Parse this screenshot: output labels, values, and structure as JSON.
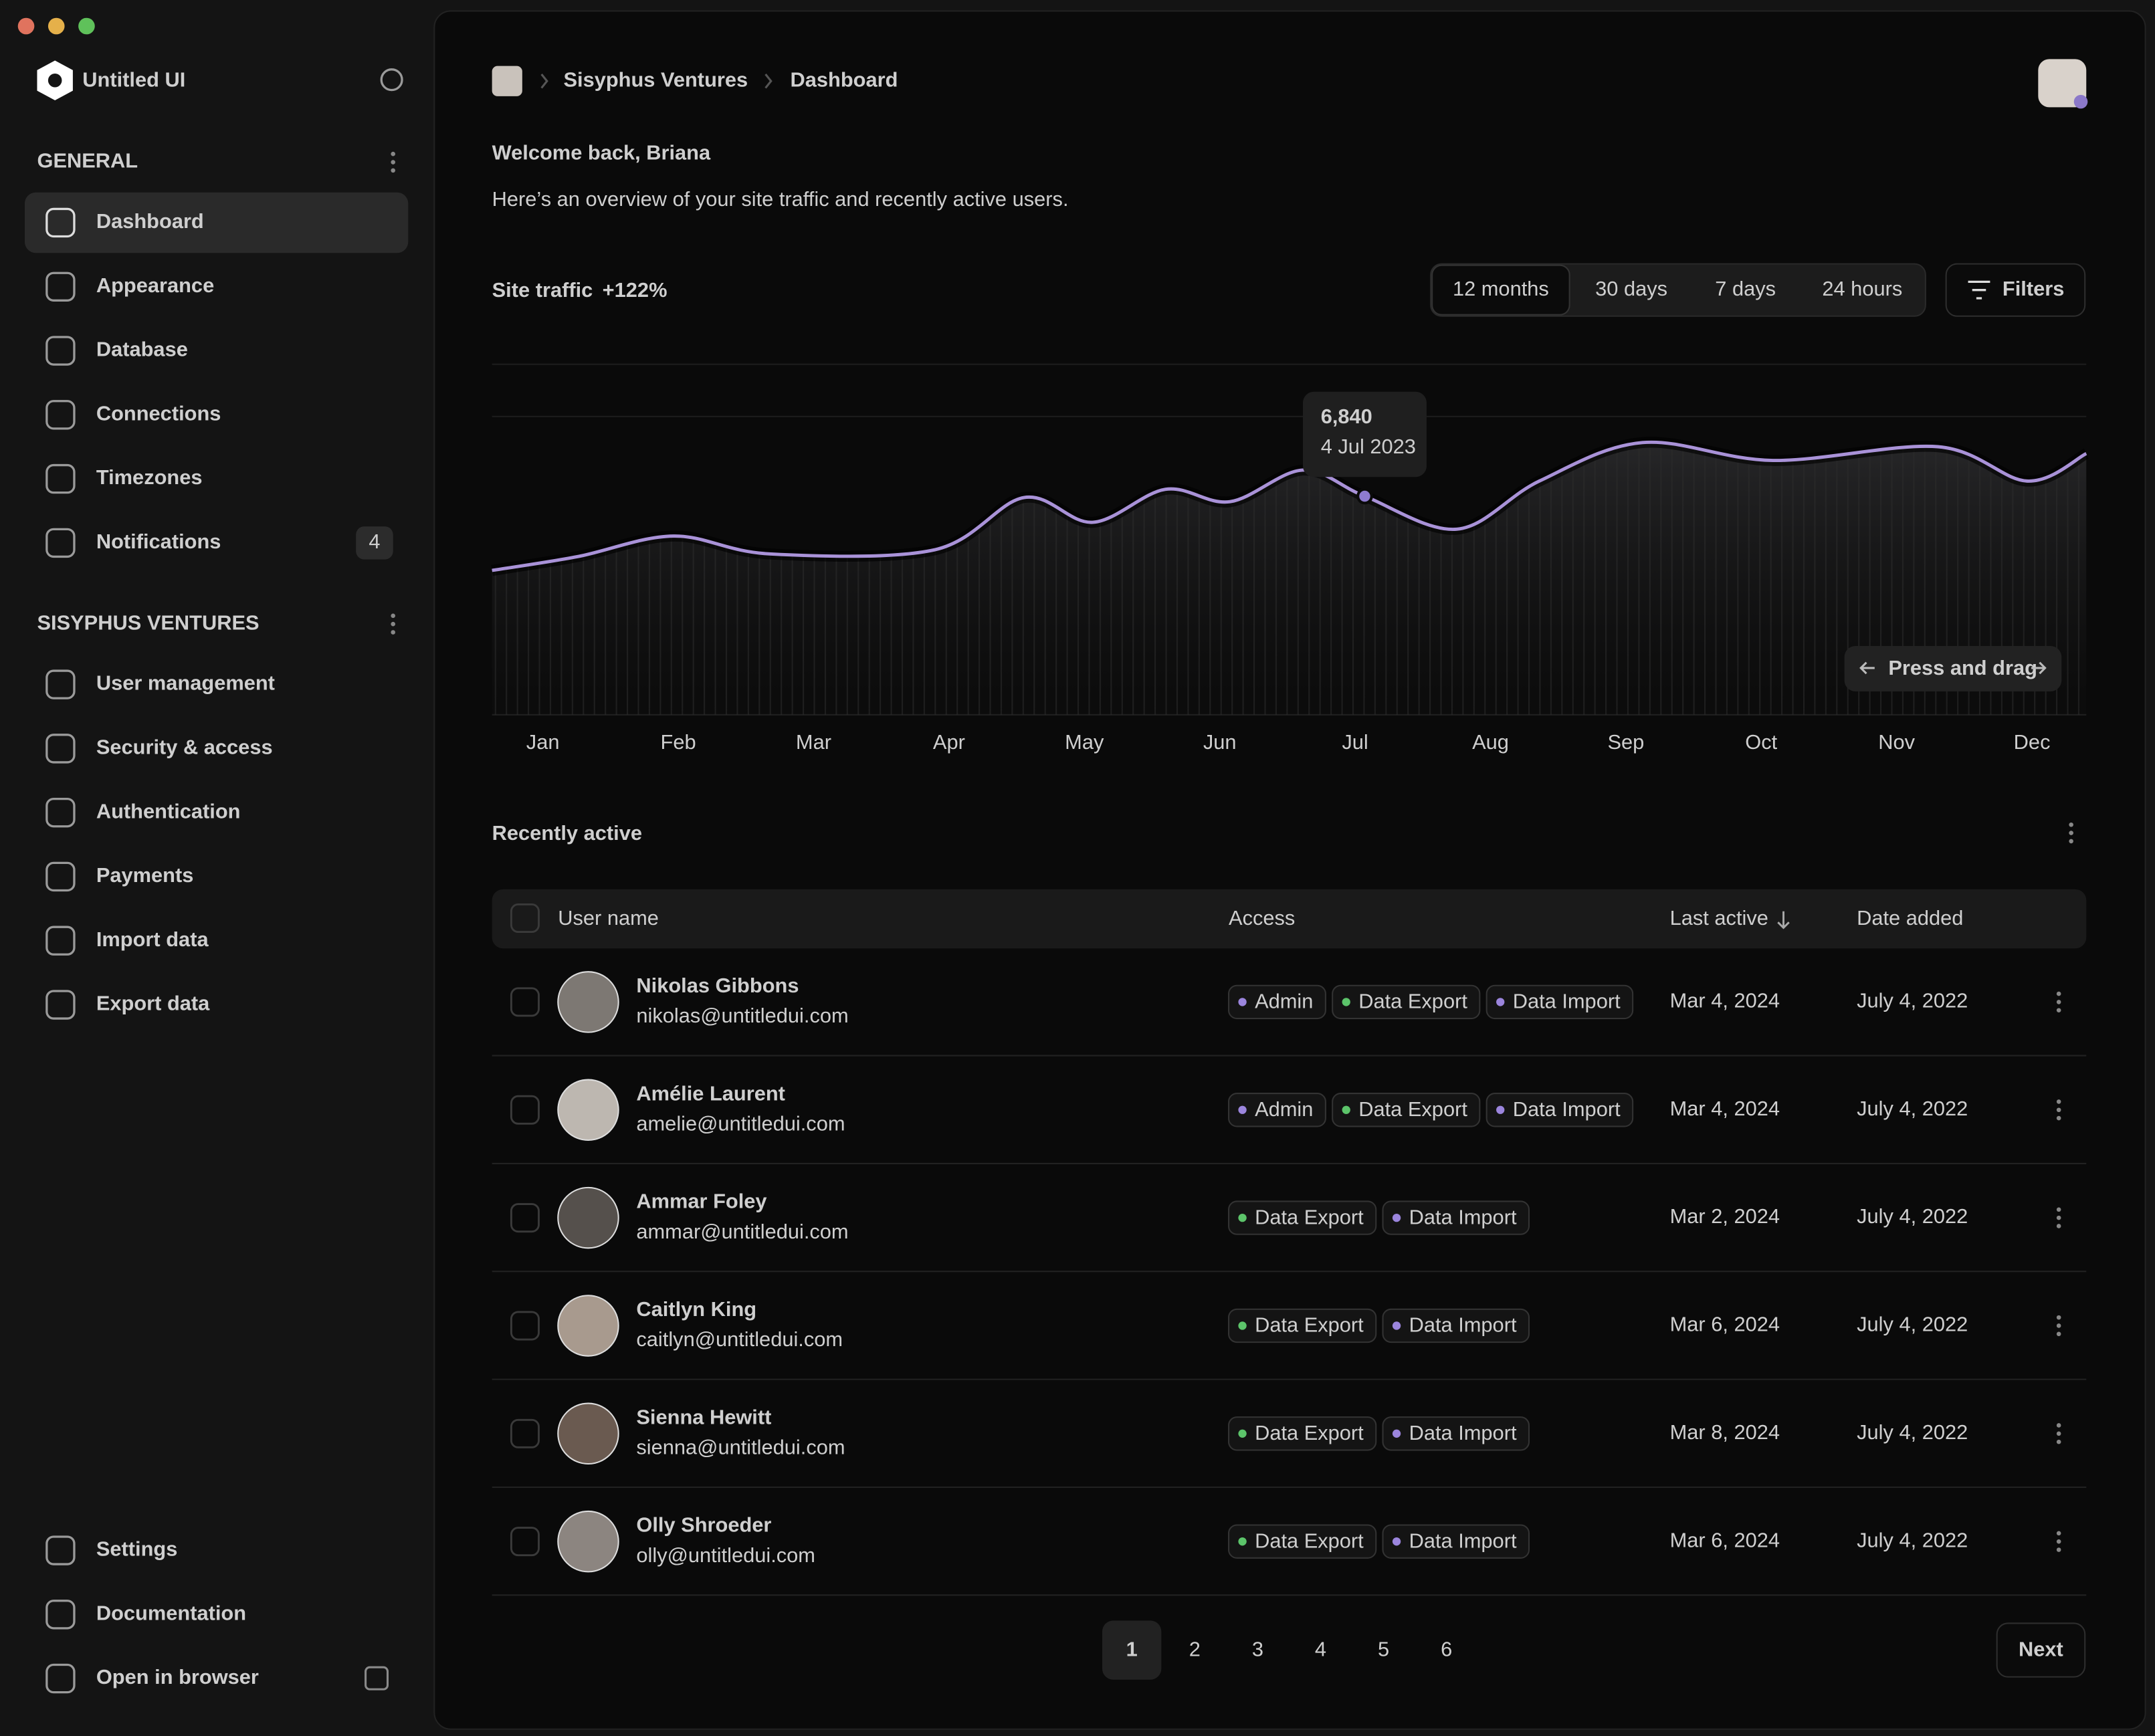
{
  "sidebar": {
    "brand": "Untitled UI",
    "sections": [
      {
        "title": "GENERAL",
        "items": [
          {
            "label": "Dashboard"
          },
          {
            "label": "Appearance"
          },
          {
            "label": "Database"
          },
          {
            "label": "Connections"
          },
          {
            "label": "Timezones"
          },
          {
            "label": "Notifications",
            "badge": 4
          }
        ]
      },
      {
        "title": "SISYPHUS VENTURES",
        "items": [
          {
            "label": "User management"
          },
          {
            "label": "Security & access"
          },
          {
            "label": "Authentication"
          },
          {
            "label": "Payments"
          },
          {
            "label": "Import data"
          },
          {
            "label": "Export data"
          }
        ]
      }
    ],
    "footer": [
      "Settings",
      "Documentation",
      "Open in browser"
    ]
  },
  "breadcrumb": [
    "Sisyphus Ventures",
    "Dashboard"
  ],
  "header": {
    "title": "Welcome back, Briana",
    "subtitle": "Here’s an overview of your site traffic and recently active users."
  },
  "traffic": {
    "title": "Site traffic",
    "change": "+122%",
    "ranges": [
      "12 months",
      "30 days",
      "7 days",
      "24 hours"
    ],
    "filters": "Filters",
    "months": [
      "Jan",
      "Feb",
      "Mar",
      "Apr",
      "May",
      "Jun",
      "Jul",
      "Aug",
      "Sep",
      "Oct",
      "Nov",
      "Dec"
    ],
    "tooltip": {
      "value": "6,840",
      "date": "4 Jul 2023"
    },
    "hint": "Press and drag"
  },
  "table": {
    "title": "Recently active",
    "columns": [
      "User name",
      "Access",
      "Last active",
      "Date added"
    ],
    "rows": [
      {
        "name": "Nikolas Gibbons",
        "email": "nikolas@untitledui.com",
        "access": [
          "Admin",
          "Data Export",
          "Data Import"
        ],
        "last_active": "Mar 4, 2024",
        "date_added": "July 4, 2022"
      },
      {
        "name": "Amélie Laurent",
        "email": "amelie@untitledui.com",
        "access": [
          "Admin",
          "Data Export",
          "Data Import"
        ],
        "last_active": "Mar 4, 2024",
        "date_added": "July 4, 2022"
      },
      {
        "name": "Ammar Foley",
        "email": "ammar@untitledui.com",
        "access": [
          "Data Export",
          "Data Import"
        ],
        "last_active": "Mar 2, 2024",
        "date_added": "July 4, 2022"
      },
      {
        "name": "Caitlyn King",
        "email": "caitlyn@untitledui.com",
        "access": [
          "Data Export",
          "Data Import"
        ],
        "last_active": "Mar 6, 2024",
        "date_added": "July 4, 2022"
      },
      {
        "name": "Sienna Hewitt",
        "email": "sienna@untitledui.com",
        "access": [
          "Data Export",
          "Data Import"
        ],
        "last_active": "Mar 8, 2024",
        "date_added": "July 4, 2022"
      },
      {
        "name": "Olly Shroeder",
        "email": "olly@untitledui.com",
        "access": [
          "Data Export",
          "Data Import"
        ],
        "last_active": "Mar 6, 2024",
        "date_added": "July 4, 2022"
      }
    ]
  },
  "pagination": {
    "pages": [
      1,
      2,
      3,
      4,
      5,
      6
    ],
    "next": "Next"
  }
}
